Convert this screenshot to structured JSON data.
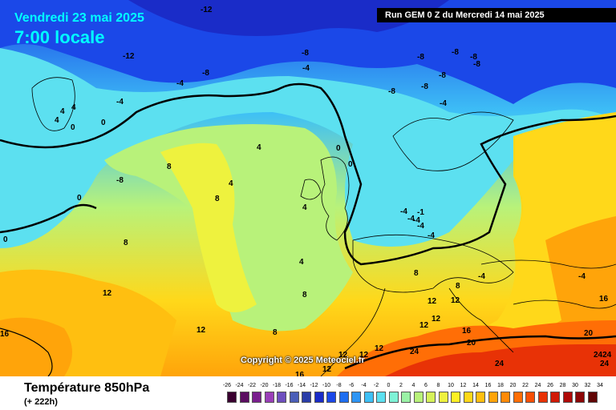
{
  "header": {
    "date": "Vendredi 23 mai 2025",
    "time": "7:00 locale",
    "run": "Run GEM 0 Z du Mercredi 14 mai 2025"
  },
  "copyright": "Copyright © 2025 Meteociel.fr",
  "footer": {
    "title": "Température 850hPa",
    "subtitle": "(+ 222h)"
  },
  "legend": {
    "ticks": [
      "-26",
      "-24",
      "-22",
      "-20",
      "-18",
      "-16",
      "-14",
      "-12",
      "-10",
      "-8",
      "-6",
      "-4",
      "-2",
      "0",
      "2",
      "4",
      "6",
      "8",
      "10",
      "12",
      "14",
      "16",
      "18",
      "20",
      "22",
      "24",
      "26",
      "28",
      "30",
      "32",
      "34"
    ],
    "colors": [
      "#3a0030",
      "#5a0d60",
      "#7a1e8e",
      "#9a3fb8",
      "#6e4fbe",
      "#4b5eb8",
      "#2a3da8",
      "#1a2cc8",
      "#1b48e8",
      "#1e6ef0",
      "#2e95f5",
      "#3ec0f6",
      "#5ce0f0",
      "#7ef2d6",
      "#9af2a6",
      "#b8f27a",
      "#d6f25a",
      "#eef23e",
      "#fff024",
      "#ffd81a",
      "#ffbf10",
      "#ffa40a",
      "#ff8a08",
      "#ff6e06",
      "#f85006",
      "#e83206",
      "#d01a06",
      "#b00a08",
      "#8c0606",
      "#600404"
    ]
  },
  "map": {
    "labels": [
      {
        "text": "-12",
        "id": "a"
      },
      {
        "text": "-12",
        "id": "b"
      },
      {
        "text": "-8",
        "id": "c"
      },
      {
        "text": "-8",
        "id": "d"
      },
      {
        "text": "-8",
        "id": "e"
      },
      {
        "text": "-8",
        "id": "f"
      },
      {
        "text": "-8",
        "id": "g"
      },
      {
        "text": "-8",
        "id": "h"
      },
      {
        "text": "-8",
        "id": "i"
      },
      {
        "text": "-8",
        "id": "j"
      },
      {
        "text": "-8",
        "id": "k"
      },
      {
        "text": "-4",
        "id": "l"
      },
      {
        "text": "-4",
        "id": "m"
      },
      {
        "text": "-4",
        "id": "n"
      },
      {
        "text": "-4",
        "id": "o"
      },
      {
        "text": "-4",
        "id": "p"
      },
      {
        "text": "-4",
        "id": "q"
      },
      {
        "text": "-4",
        "id": "r"
      },
      {
        "text": "-4",
        "id": "s"
      },
      {
        "text": "4",
        "id": "t"
      },
      {
        "text": "4",
        "id": "u"
      },
      {
        "text": "4",
        "id": "v"
      },
      {
        "text": "4",
        "id": "w"
      },
      {
        "text": "4",
        "id": "x"
      },
      {
        "text": "4",
        "id": "y"
      },
      {
        "text": "4",
        "id": "z"
      },
      {
        "text": "0",
        "id": "aa"
      },
      {
        "text": "0",
        "id": "ab"
      },
      {
        "text": "0",
        "id": "ac"
      },
      {
        "text": "0",
        "id": "ad"
      },
      {
        "text": "0",
        "id": "ae"
      },
      {
        "text": "0",
        "id": "af"
      },
      {
        "text": "-8",
        "id": "ag"
      },
      {
        "text": "8",
        "id": "ah"
      },
      {
        "text": "8",
        "id": "ai"
      },
      {
        "text": "8",
        "id": "aj"
      },
      {
        "text": "8",
        "id": "ak"
      },
      {
        "text": "8",
        "id": "al"
      },
      {
        "text": "8",
        "id": "am"
      },
      {
        "text": "8",
        "id": "an"
      },
      {
        "text": "12",
        "id": "ao"
      },
      {
        "text": "12",
        "id": "ap"
      },
      {
        "text": "12",
        "id": "aq"
      },
      {
        "text": "12",
        "id": "ar"
      },
      {
        "text": "12",
        "id": "as"
      },
      {
        "text": "12",
        "id": "at"
      },
      {
        "text": "12",
        "id": "au"
      },
      {
        "text": "12",
        "id": "av"
      },
      {
        "text": "12",
        "id": "aw"
      },
      {
        "text": "12",
        "id": "ax"
      },
      {
        "text": "16",
        "id": "ay"
      },
      {
        "text": "16",
        "id": "az"
      },
      {
        "text": "16",
        "id": "ba"
      },
      {
        "text": "16",
        "id": "bb"
      },
      {
        "text": "20",
        "id": "bc"
      },
      {
        "text": "20",
        "id": "bd"
      },
      {
        "text": "24",
        "id": "be"
      },
      {
        "text": "24",
        "id": "bf"
      },
      {
        "text": "2424",
        "id": "bg"
      },
      {
        "text": "24",
        "id": "bh"
      },
      {
        "text": "-1",
        "id": "bi"
      },
      {
        "text": "-4",
        "id": "bj"
      },
      {
        "text": "-4",
        "id": "bk"
      },
      {
        "text": "-4",
        "id": "bl"
      }
    ]
  }
}
